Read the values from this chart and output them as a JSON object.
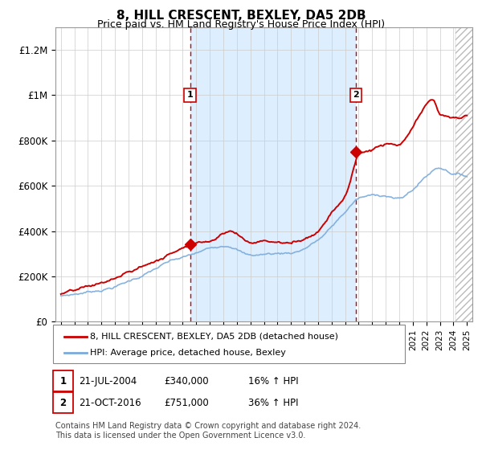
{
  "title": "8, HILL CRESCENT, BEXLEY, DA5 2DB",
  "subtitle": "Price paid vs. HM Land Registry's House Price Index (HPI)",
  "ylim": [
    0,
    1300000
  ],
  "yticks": [
    0,
    200000,
    400000,
    600000,
    800000,
    1000000,
    1200000
  ],
  "ytick_labels": [
    "£0",
    "£200K",
    "£400K",
    "£600K",
    "£800K",
    "£1M",
    "£1.2M"
  ],
  "xstart_year": 1995,
  "xend_year": 2025,
  "sale1_date": 2004.55,
  "sale1_price": 340000,
  "sale1_label": "1",
  "sale1_text": "21-JUL-2004",
  "sale1_amount": "£340,000",
  "sale1_hpi": "16% ↑ HPI",
  "sale2_date": 2016.8,
  "sale2_price": 751000,
  "sale2_label": "2",
  "sale2_text": "21-OCT-2016",
  "sale2_amount": "£751,000",
  "sale2_hpi": "36% ↑ HPI",
  "hpi_color": "#7aabdb",
  "sale_color": "#cc0000",
  "bg_color": "#ddeeff",
  "hatch_color": "#aaaaaa",
  "grid_color": "#cccccc",
  "legend_line1": "8, HILL CRESCENT, BEXLEY, DA5 2DB (detached house)",
  "legend_line2": "HPI: Average price, detached house, Bexley",
  "footer": "Contains HM Land Registry data © Crown copyright and database right 2024.\nThis data is licensed under the Open Government Licence v3.0."
}
